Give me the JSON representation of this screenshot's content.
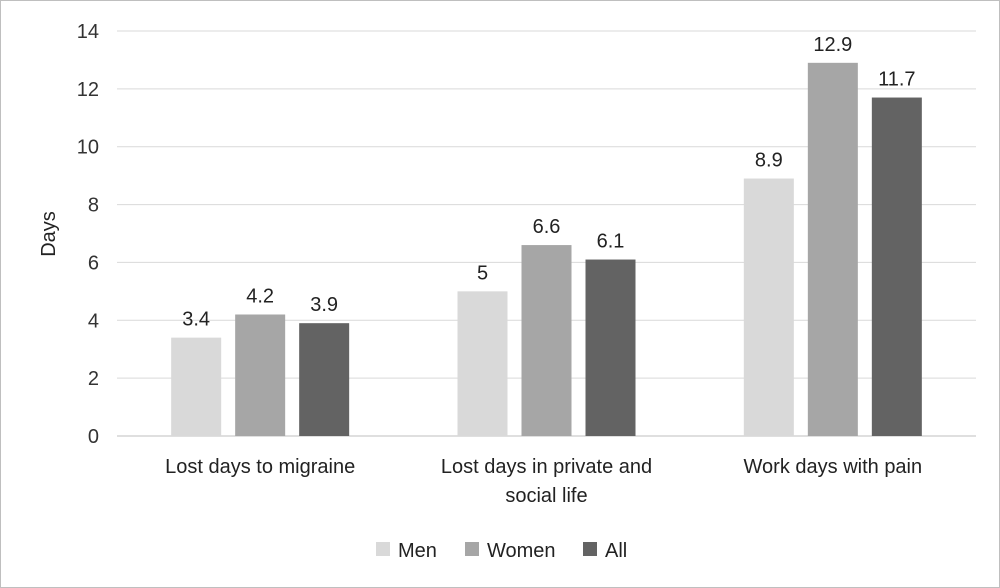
{
  "chart_data": {
    "type": "bar",
    "title": "",
    "xlabel": "",
    "ylabel": "Days",
    "ylim": [
      0,
      14
    ],
    "yticks": [
      0,
      2,
      4,
      6,
      8,
      10,
      12,
      14
    ],
    "grid": true,
    "legend_position": "bottom",
    "categories": [
      [
        "Lost days to migraine"
      ],
      [
        "Lost days in private and",
        "social life"
      ],
      [
        "Work days with pain"
      ]
    ],
    "series": [
      {
        "name": "Men",
        "color": "#d9d9d9",
        "values": [
          3.4,
          5,
          8.9
        ],
        "labels": [
          "3.4",
          "5",
          "8.9"
        ]
      },
      {
        "name": "Women",
        "color": "#a6a6a6",
        "values": [
          4.2,
          6.6,
          12.9
        ],
        "labels": [
          "4.2",
          "6.6",
          "12.9"
        ]
      },
      {
        "name": "All",
        "color": "#636363",
        "values": [
          3.9,
          6.1,
          11.7
        ],
        "labels": [
          "3.9",
          "6.1",
          "11.7"
        ]
      }
    ]
  }
}
